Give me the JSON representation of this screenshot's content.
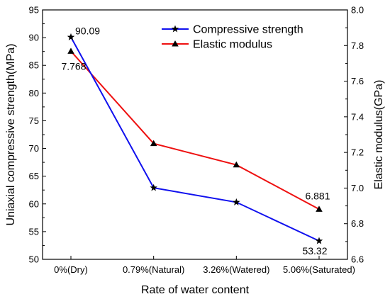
{
  "chart_data": {
    "type": "line",
    "categories": [
      "0%(Dry)",
      "0.79%(Natural)",
      "3.26%(Watered)",
      "5.06%(Saturated)"
    ],
    "xlabel": "Rate of water content",
    "ylabel_left": "Uniaxial compressive strength(MPa)",
    "ylabel_right": "Elastic modulus(GPa)",
    "ylim_left": [
      50,
      95
    ],
    "yticks_left": [
      50,
      55,
      60,
      65,
      70,
      75,
      80,
      85,
      90,
      95
    ],
    "ylim_right": [
      6.6,
      8.0
    ],
    "yticks_right": [
      "6.6",
      "6.8",
      "7.0",
      "7.2",
      "7.4",
      "7.6",
      "7.8",
      "8.0"
    ],
    "grid": false,
    "legend_position": "top-center",
    "series": [
      {
        "name": "Compressive strength",
        "axis": "left",
        "color": "#1010ee",
        "marker": "star",
        "values": [
          90.09,
          62.9,
          60.3,
          53.32
        ]
      },
      {
        "name": "Elastic modulus",
        "axis": "right",
        "color": "#ee1010",
        "marker": "triangle",
        "values": [
          7.768,
          7.25,
          7.13,
          6.881
        ]
      }
    ],
    "annotations": [
      {
        "series": 0,
        "index": 0,
        "text": "90.09"
      },
      {
        "series": 1,
        "index": 0,
        "text": "7.768"
      },
      {
        "series": 1,
        "index": 3,
        "text": "6.881"
      },
      {
        "series": 0,
        "index": 3,
        "text": "53.32"
      }
    ]
  }
}
